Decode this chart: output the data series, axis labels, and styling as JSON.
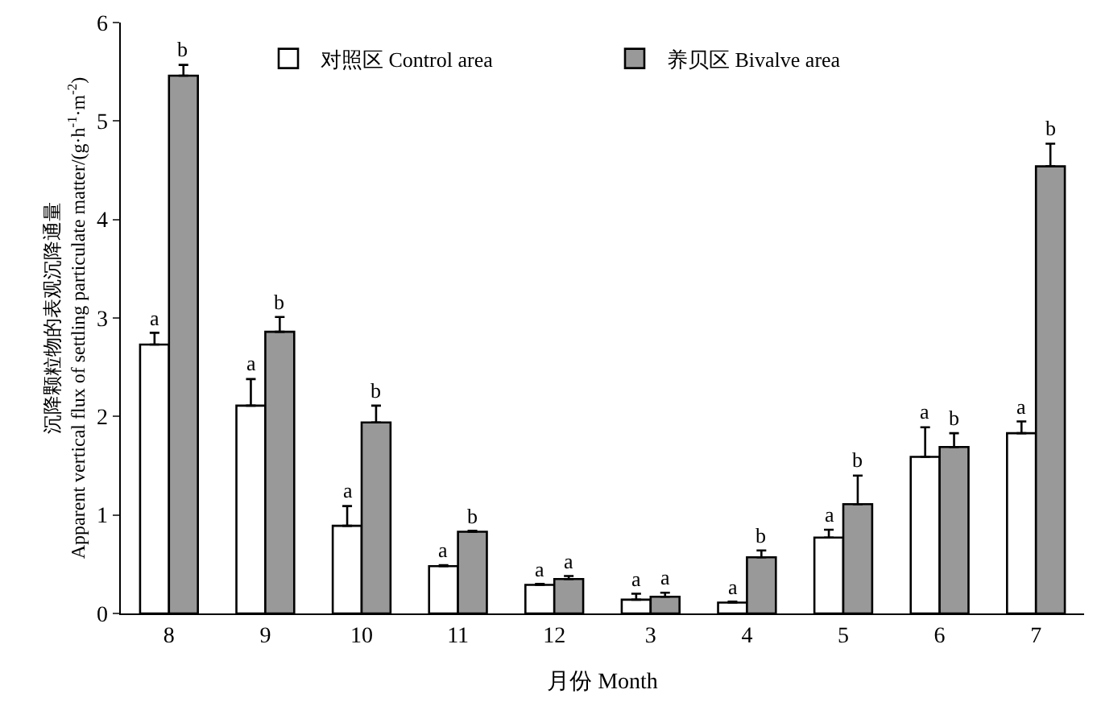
{
  "chart_data": {
    "type": "bar",
    "xlabel": "月份 Month",
    "ylabel": "沉降颗粒物的表观沉降通量\nApparent vertical flux of settling particulate matter/(g·h$^{-1}$·m$^{-2}$)",
    "categories": [
      "8",
      "9",
      "10",
      "11",
      "12",
      "3",
      "4",
      "5",
      "6",
      "7"
    ],
    "series": [
      {
        "name": "对照区 Control area",
        "color": "#ffffff",
        "values": [
          2.73,
          2.11,
          0.89,
          0.48,
          0.29,
          0.14,
          0.11,
          0.77,
          1.59,
          1.83
        ],
        "errors": [
          [
            2.73,
            2.85
          ],
          [
            2.11,
            2.38
          ],
          [
            0.89,
            1.09
          ],
          [
            0.48,
            0.49
          ],
          [
            0.29,
            0.3
          ],
          [
            0.14,
            0.2
          ],
          [
            0.11,
            0.12
          ],
          [
            0.77,
            0.85
          ],
          [
            1.59,
            1.89
          ],
          [
            1.83,
            1.95
          ]
        ],
        "value_labels": [
          "a",
          "a",
          "a",
          "a",
          "a",
          "a",
          "a",
          "a",
          "a",
          "a"
        ]
      },
      {
        "name": "养贝区 Bivalve area",
        "color": "#999999",
        "values": [
          5.46,
          2.86,
          1.94,
          0.83,
          0.35,
          0.17,
          0.57,
          1.11,
          1.69,
          4.54
        ],
        "errors": [
          [
            5.46,
            5.57
          ],
          [
            2.86,
            3.01
          ],
          [
            1.94,
            2.11
          ],
          [
            0.83,
            0.84
          ],
          [
            0.35,
            0.38
          ],
          [
            0.17,
            0.21
          ],
          [
            0.57,
            0.64
          ],
          [
            1.11,
            1.4
          ],
          [
            1.69,
            1.83
          ],
          [
            4.54,
            4.77
          ]
        ],
        "value_labels": [
          "b",
          "b",
          "b",
          "b",
          "a",
          "a",
          "b",
          "b",
          "b",
          "b"
        ]
      }
    ],
    "ylim": [
      0,
      6
    ],
    "yticks": [
      0,
      1,
      2,
      3,
      4,
      5,
      6
    ],
    "legend": "top"
  }
}
